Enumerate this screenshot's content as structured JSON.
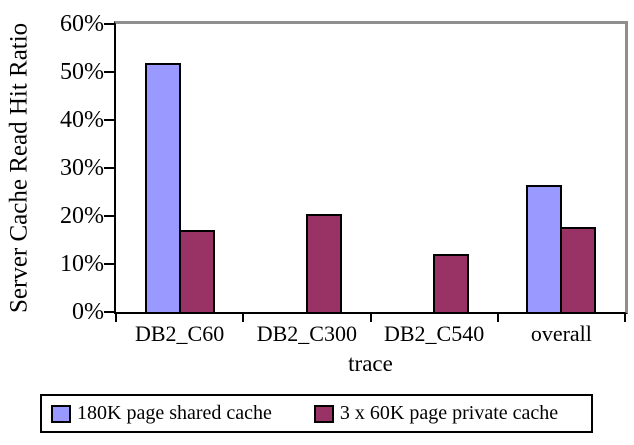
{
  "chart_data": {
    "type": "bar",
    "title": "",
    "categories": [
      "DB2_C60",
      "DB2_C300",
      "DB2_C540",
      "overall"
    ],
    "series": [
      {
        "name": "180K page shared cache",
        "color": "#9999ff",
        "values": [
          51.8,
          0,
          0,
          26.4
        ]
      },
      {
        "name": "3 x 60K page private cache",
        "color": "#993366",
        "values": [
          17.1,
          20.4,
          12.0,
          17.7
        ]
      }
    ],
    "xlabel": "trace",
    "ylabel": "Server Cache Read Hit Ratio",
    "ylim": [
      0,
      60
    ],
    "ytick_labels": [
      "0%",
      "10%",
      "20%",
      "30%",
      "40%",
      "50%",
      "60%"
    ],
    "grid": false,
    "legend_position": "bottom",
    "colors": {
      "axis": "#000000",
      "frame_shadow": "#8f8f8f",
      "background": "#ffffff",
      "bar_outline": "#000000"
    }
  }
}
